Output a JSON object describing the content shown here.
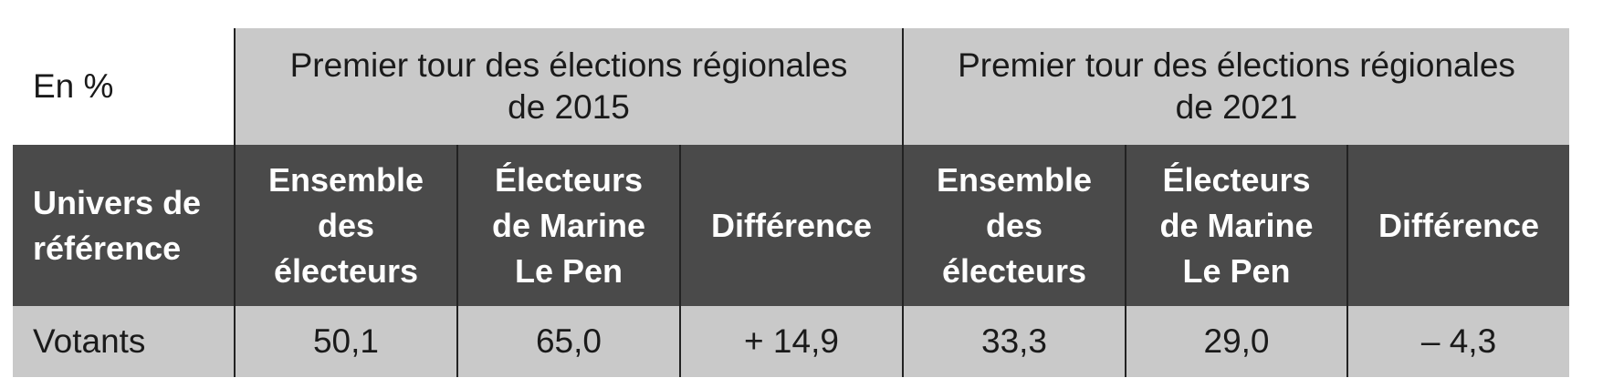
{
  "table": {
    "corner": "En %",
    "groups": [
      "Premier tour des élections régionales de 2015",
      "Premier tour des élections régionales de 2021"
    ],
    "columns": [
      "Univers de référence",
      "Ensemble des électeurs",
      "Électeurs de Marine Le Pen",
      "Différence",
      "Ensemble des électeurs",
      "Électeurs de Marine Le Pen",
      "Différence"
    ],
    "rows": [
      [
        "Votants",
        "50,1",
        "65,0",
        "+ 14,9",
        "33,3",
        "29,0",
        "– 4,3"
      ]
    ]
  }
}
